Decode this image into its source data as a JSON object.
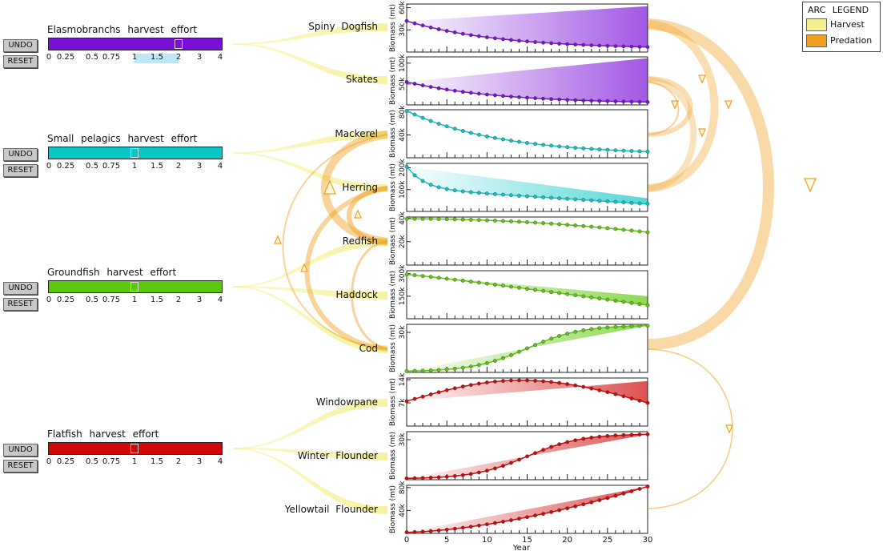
{
  "colors": {
    "elasmobranchs": "#7a10d8",
    "small_pelagics": "#0ac6c6",
    "groundfish": "#5cc80a",
    "flatfish": "#d00808",
    "harvest": "#f4f090",
    "predation": "#f0a020"
  },
  "controls": [
    {
      "id": "elasmobranchs",
      "title": "Elasmobranchs harvest effort",
      "undo": "UNDO",
      "reset": "RESET",
      "value": 2,
      "color_key": "elasmobranchs",
      "highlight": [
        1,
        2
      ]
    },
    {
      "id": "small-pelagics",
      "title": "Small pelagics harvest effort",
      "undo": "UNDO",
      "reset": "RESET",
      "value": 1,
      "color_key": "small_pelagics"
    },
    {
      "id": "groundfish",
      "title": "Groundfish harvest effort",
      "undo": "UNDO",
      "reset": "RESET",
      "value": 1,
      "color_key": "groundfish"
    },
    {
      "id": "flatfish",
      "title": "Flatfish harvest effort",
      "undo": "UNDO",
      "reset": "RESET",
      "value": 1,
      "color_key": "flatfish"
    }
  ],
  "slider_ticks": [
    "0",
    "0.25",
    "0.5",
    "0.75",
    "1",
    "1.5",
    "2",
    "3",
    "4"
  ],
  "slider_tick_values": [
    0,
    0.25,
    0.5,
    0.75,
    1,
    1.5,
    2,
    3,
    4
  ],
  "legend": {
    "title": "ARC LEGEND",
    "harvest": "Harvest",
    "predation": "Predation"
  },
  "chart_data": [
    {
      "type": "line",
      "species": "Spiny Dogfish",
      "ylabel": "Biomass (mt)",
      "yticks": [
        "30k",
        "60k"
      ],
      "ytick_values": [
        30000,
        60000
      ],
      "ylim": [
        0,
        65000
      ],
      "start": 42000,
      "end": 4000,
      "shape": "decline",
      "ceiling": 62000,
      "color_key": "elasmobranchs"
    },
    {
      "type": "line",
      "species": "Skates",
      "ylabel": "Biomass (mt)",
      "yticks": [
        "50k",
        "100k"
      ],
      "ytick_values": [
        50000,
        100000
      ],
      "ylim": [
        0,
        115000
      ],
      "start": 55000,
      "end": 3000,
      "shape": "decline",
      "ceiling": 112000,
      "color_key": "elasmobranchs"
    },
    {
      "type": "line",
      "species": "Mackerel",
      "ylabel": "Biomass (mt)",
      "yticks": [
        "40k",
        "80k"
      ],
      "ytick_values": [
        40000,
        80000
      ],
      "ylim": [
        0,
        84000
      ],
      "start": 82000,
      "end": 5000,
      "shape": "decline",
      "color_key": "small_pelagics"
    },
    {
      "type": "line",
      "species": "Herring",
      "ylabel": "Biomass (mt)",
      "yticks": [
        "100k",
        "200k"
      ],
      "ytick_values": [
        100000,
        200000
      ],
      "ylim": [
        0,
        220000
      ],
      "start": 205000,
      "end": 22000,
      "shape": "herring",
      "ceiling": 60000,
      "color_key": "small_pelagics"
    },
    {
      "type": "line",
      "species": "Redfish",
      "ylabel": "Biomass (mt)",
      "yticks": [
        "20k",
        "40k"
      ],
      "ytick_values": [
        20000,
        40000
      ],
      "ylim": [
        0,
        41000
      ],
      "start": 39500,
      "end": 28000,
      "shape": "slow-decline",
      "color_key": "groundfish"
    },
    {
      "type": "line",
      "species": "Haddock",
      "ylabel": "Biomass (mt)",
      "yticks": [
        "150k",
        "300k"
      ],
      "ytick_values": [
        150000,
        300000
      ],
      "ylim": [
        0,
        320000
      ],
      "start": 295000,
      "end": 90000,
      "shape": "linear-decline",
      "ceiling": 150000,
      "color_key": "groundfish"
    },
    {
      "type": "line",
      "species": "Cod",
      "ylabel": "Biomass (mt)",
      "yticks": [
        "30k"
      ],
      "ytick_values": [
        30000
      ],
      "ylim": [
        0,
        36000
      ],
      "start": 1000,
      "end": 35000,
      "shape": "sigmoid",
      "ceiling": 35000,
      "color_key": "groundfish"
    },
    {
      "type": "line",
      "species": "Windowpane",
      "ylabel": "Biomass (mt)",
      "yticks": [
        "7k",
        "14k"
      ],
      "ytick_values": [
        7000,
        14000
      ],
      "ylim": [
        0,
        14500
      ],
      "start": 7500,
      "end": 7000,
      "shape": "hump",
      "peak": 13800,
      "ceiling": 13600,
      "color_key": "flatfish"
    },
    {
      "type": "line",
      "species": "Winter Flounder",
      "ylabel": "Biomass (mt)",
      "yticks": [
        "30k"
      ],
      "ytick_values": [
        30000
      ],
      "ylim": [
        0,
        36000
      ],
      "start": 1000,
      "end": 34000,
      "shape": "sigmoid",
      "ceiling": 34000,
      "color_key": "flatfish"
    },
    {
      "type": "line",
      "species": "Yellowtail Flounder",
      "ylabel": "Biomass (mt)",
      "yticks": [
        "40k",
        "80k"
      ],
      "ytick_values": [
        40000,
        80000
      ],
      "ylim": [
        0,
        84000
      ],
      "start": 2000,
      "end": 82000,
      "shape": "rise",
      "ceiling": 82000,
      "color_key": "flatfish"
    }
  ],
  "x_axis": {
    "label": "Year",
    "ticks": [
      "0",
      "5",
      "10",
      "15",
      "20",
      "25",
      "30"
    ],
    "tick_values": [
      0,
      5,
      10,
      15,
      20,
      25,
      30
    ],
    "range": [
      0,
      30
    ]
  }
}
